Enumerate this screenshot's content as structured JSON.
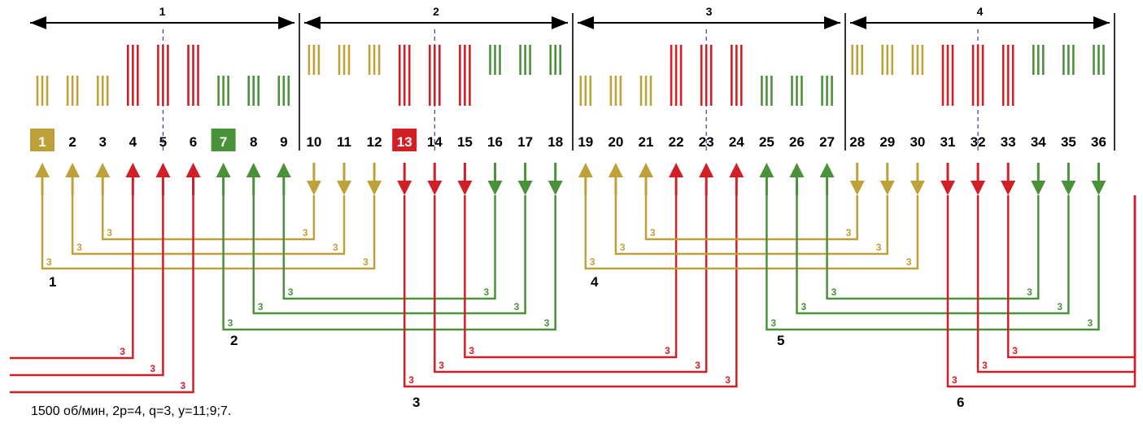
{
  "colors": {
    "phase_a": "#bfa13a",
    "phase_b": "#d21f26",
    "phase_c": "#4a9239",
    "line": "#000000",
    "axis": "#3a3aa8"
  },
  "caption": "1500 об/мин, 2p=4, q=3, y=11;9;7.",
  "poles": [
    {
      "label": "1"
    },
    {
      "label": "2"
    },
    {
      "label": "3"
    },
    {
      "label": "4"
    }
  ],
  "slots": [
    {
      "n": "1",
      "phase": "a",
      "dir": "up",
      "boxed": true
    },
    {
      "n": "2",
      "phase": "a",
      "dir": "up"
    },
    {
      "n": "3",
      "phase": "a",
      "dir": "up"
    },
    {
      "n": "4",
      "phase": "b",
      "dir": "up"
    },
    {
      "n": "5",
      "phase": "b",
      "dir": "up"
    },
    {
      "n": "6",
      "phase": "b",
      "dir": "up"
    },
    {
      "n": "7",
      "phase": "c",
      "dir": "up",
      "boxed": true
    },
    {
      "n": "8",
      "phase": "c",
      "dir": "up"
    },
    {
      "n": "9",
      "phase": "c",
      "dir": "up"
    },
    {
      "n": "10",
      "phase": "a",
      "dir": "down"
    },
    {
      "n": "11",
      "phase": "a",
      "dir": "down"
    },
    {
      "n": "12",
      "phase": "a",
      "dir": "down"
    },
    {
      "n": "13",
      "phase": "b",
      "dir": "down",
      "boxed": true
    },
    {
      "n": "14",
      "phase": "b",
      "dir": "down"
    },
    {
      "n": "15",
      "phase": "b",
      "dir": "down"
    },
    {
      "n": "16",
      "phase": "c",
      "dir": "down"
    },
    {
      "n": "17",
      "phase": "c",
      "dir": "down"
    },
    {
      "n": "18",
      "phase": "c",
      "dir": "down"
    },
    {
      "n": "19",
      "phase": "a",
      "dir": "up"
    },
    {
      "n": "20",
      "phase": "a",
      "dir": "up"
    },
    {
      "n": "21",
      "phase": "a",
      "dir": "up"
    },
    {
      "n": "22",
      "phase": "b",
      "dir": "up"
    },
    {
      "n": "23",
      "phase": "b",
      "dir": "up"
    },
    {
      "n": "24",
      "phase": "b",
      "dir": "up"
    },
    {
      "n": "25",
      "phase": "c",
      "dir": "up"
    },
    {
      "n": "26",
      "phase": "c",
      "dir": "up"
    },
    {
      "n": "27",
      "phase": "c",
      "dir": "up"
    },
    {
      "n": "28",
      "phase": "a",
      "dir": "down"
    },
    {
      "n": "29",
      "phase": "a",
      "dir": "down"
    },
    {
      "n": "30",
      "phase": "a",
      "dir": "down"
    },
    {
      "n": "31",
      "phase": "b",
      "dir": "down"
    },
    {
      "n": "32",
      "phase": "b",
      "dir": "down"
    },
    {
      "n": "33",
      "phase": "b",
      "dir": "down"
    },
    {
      "n": "34",
      "phase": "c",
      "dir": "down"
    },
    {
      "n": "35",
      "phase": "c",
      "dir": "down"
    },
    {
      "n": "36",
      "phase": "c",
      "dir": "down"
    }
  ],
  "coils": [
    {
      "group": "1",
      "phase": "a",
      "from": 1,
      "to": 12,
      "turns": "3",
      "labels": [
        "3",
        "3"
      ]
    },
    {
      "group": "1",
      "phase": "a",
      "from": 2,
      "to": 11,
      "turns": "3",
      "labels": [
        "3",
        "3"
      ]
    },
    {
      "group": "1",
      "phase": "a",
      "from": 3,
      "to": 10,
      "turns": "3",
      "labels": [
        "3",
        "3"
      ]
    },
    {
      "group": "2",
      "phase": "c",
      "from": 7,
      "to": 18,
      "turns": "3",
      "labels": [
        "3",
        "3"
      ]
    },
    {
      "group": "2",
      "phase": "c",
      "from": 8,
      "to": 17,
      "turns": "3",
      "labels": [
        "3",
        "3"
      ]
    },
    {
      "group": "2",
      "phase": "c",
      "from": 9,
      "to": 16,
      "turns": "3",
      "labels": [
        "3",
        "3"
      ]
    },
    {
      "group": "3",
      "phase": "b",
      "from": 13,
      "to": 24,
      "turns": "3",
      "labels": [
        "3",
        "3"
      ]
    },
    {
      "group": "3",
      "phase": "b",
      "from": 14,
      "to": 23,
      "turns": "3",
      "labels": [
        "3",
        "3"
      ]
    },
    {
      "group": "3",
      "phase": "b",
      "from": 15,
      "to": 22,
      "turns": "3",
      "labels": [
        "3",
        "3"
      ]
    },
    {
      "group": "4",
      "phase": "a",
      "from": 19,
      "to": 30,
      "turns": "3",
      "labels": [
        "3",
        "3"
      ]
    },
    {
      "group": "4",
      "phase": "a",
      "from": 20,
      "to": 29,
      "turns": "3",
      "labels": [
        "3",
        "3"
      ]
    },
    {
      "group": "4",
      "phase": "a",
      "from": 21,
      "to": 28,
      "turns": "3",
      "labels": [
        "3",
        "3"
      ]
    },
    {
      "group": "5",
      "phase": "c",
      "from": 25,
      "to": 36,
      "turns": "3",
      "labels": [
        "3",
        "3"
      ]
    },
    {
      "group": "5",
      "phase": "c",
      "from": 26,
      "to": 35,
      "turns": "3",
      "labels": [
        "3",
        "3"
      ]
    },
    {
      "group": "5",
      "phase": "c",
      "from": 27,
      "to": 34,
      "turns": "3",
      "labels": [
        "3",
        "3"
      ]
    },
    {
      "group": "6",
      "phase": "b",
      "from": 31,
      "to": 42,
      "turns": "3",
      "labels": [
        "3",
        "3"
      ]
    },
    {
      "group": "6",
      "phase": "b",
      "from": 32,
      "to": 41,
      "turns": "3",
      "labels": [
        "3",
        "3"
      ]
    },
    {
      "group": "6",
      "phase": "b",
      "from": 33,
      "to": 40,
      "turns": "3",
      "labels": [
        "3",
        "3"
      ]
    }
  ],
  "group_labels": [
    "1",
    "2",
    "3",
    "4",
    "5",
    "6"
  ]
}
